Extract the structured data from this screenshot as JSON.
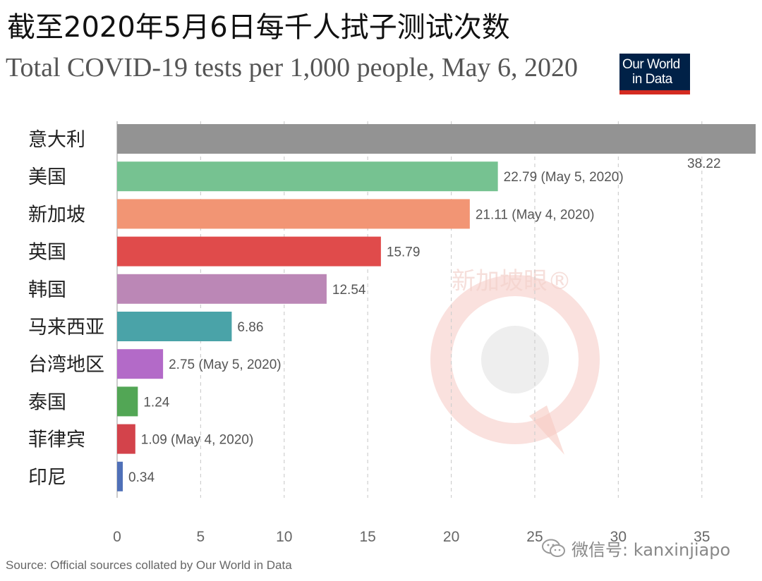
{
  "headline": "截至2020年5月6日每千人拭子测试次数",
  "logo": {
    "line1": "Our World",
    "line2": "in Data",
    "bg": "#002147",
    "accent": "#d42b21"
  },
  "source": "Source: Official sources collated by Our World in Data",
  "watermark": {
    "text": "新加坡眼®"
  },
  "wechat": {
    "text": "微信号: kanxinjiapo"
  },
  "chart_data": {
    "type": "bar",
    "orientation": "horizontal",
    "title": "Total COVID-19 tests per 1,000 people, May 6, 2020",
    "xlim": [
      0,
      38.22
    ],
    "xticks": [
      0,
      5,
      10,
      15,
      20,
      25,
      30,
      35
    ],
    "grid": true,
    "bars": [
      {
        "label": "意大利",
        "value": 38.22,
        "value_label": "38.22",
        "color": "#939393"
      },
      {
        "label": "美国",
        "value": 22.79,
        "value_label": "22.79 (May 5, 2020)",
        "color": "#76c291"
      },
      {
        "label": "新加坡",
        "value": 21.11,
        "value_label": "21.11 (May 4, 2020)",
        "color": "#f29574"
      },
      {
        "label": "英国",
        "value": 15.79,
        "value_label": "15.79",
        "color": "#e04b4b"
      },
      {
        "label": "韩国",
        "value": 12.54,
        "value_label": "12.54",
        "color": "#bb87b6"
      },
      {
        "label": "马来西亚",
        "value": 6.86,
        "value_label": "6.86",
        "color": "#4aa3a8"
      },
      {
        "label": "台湾地区",
        "value": 2.75,
        "value_label": "2.75 (May 5, 2020)",
        "color": "#b36ac8"
      },
      {
        "label": "泰国",
        "value": 1.24,
        "value_label": "1.24",
        "color": "#52a655"
      },
      {
        "label": "菲律宾",
        "value": 1.09,
        "value_label": "1.09 (May 4, 2020)",
        "color": "#d3434b"
      },
      {
        "label": "印尼",
        "value": 0.34,
        "value_label": "0.34",
        "color": "#4f70b8"
      }
    ]
  }
}
